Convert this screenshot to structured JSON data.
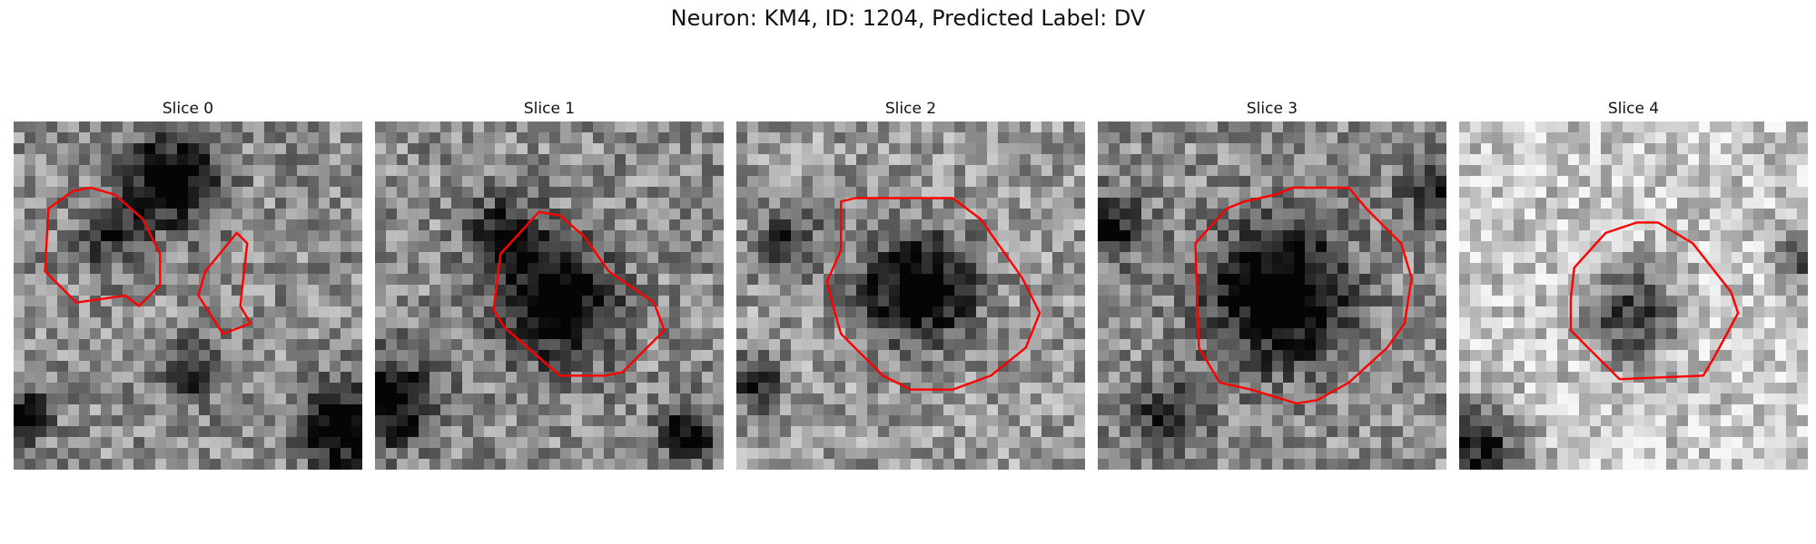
{
  "figure": {
    "title": "Neuron: KM4, ID: 1204, Predicted Label: DV"
  },
  "panels": [
    {
      "title": "Slice 0",
      "seed": 11,
      "dark_blobs": [
        [
          0.45,
          0.17,
          0.16,
          0.95
        ],
        [
          0.28,
          0.32,
          0.12,
          0.55
        ],
        [
          0.95,
          0.88,
          0.15,
          0.95
        ],
        [
          0.02,
          0.85,
          0.09,
          0.85
        ],
        [
          0.5,
          0.72,
          0.1,
          0.6
        ]
      ],
      "base": 0.55,
      "contours": [
        [
          [
            0.1,
            0.25
          ],
          [
            0.17,
            0.2
          ],
          [
            0.22,
            0.19
          ],
          [
            0.29,
            0.21
          ],
          [
            0.37,
            0.28
          ],
          [
            0.42,
            0.38
          ],
          [
            0.42,
            0.47
          ],
          [
            0.36,
            0.53
          ],
          [
            0.32,
            0.5
          ],
          [
            0.18,
            0.52
          ],
          [
            0.09,
            0.43
          ]
        ],
        [
          [
            0.64,
            0.32
          ],
          [
            0.67,
            0.35
          ],
          [
            0.65,
            0.53
          ],
          [
            0.68,
            0.58
          ],
          [
            0.6,
            0.61
          ],
          [
            0.53,
            0.5
          ],
          [
            0.55,
            0.43
          ]
        ]
      ]
    },
    {
      "title": "Slice 1",
      "seed": 23,
      "dark_blobs": [
        [
          0.52,
          0.52,
          0.2,
          1.0
        ],
        [
          0.37,
          0.32,
          0.13,
          0.6
        ],
        [
          0.04,
          0.8,
          0.16,
          0.9
        ],
        [
          0.9,
          0.9,
          0.1,
          0.8
        ]
      ],
      "base": 0.55,
      "contours": [
        [
          [
            0.36,
            0.38
          ],
          [
            0.47,
            0.26
          ],
          [
            0.53,
            0.27
          ],
          [
            0.6,
            0.33
          ],
          [
            0.67,
            0.43
          ],
          [
            0.8,
            0.52
          ],
          [
            0.83,
            0.6
          ],
          [
            0.71,
            0.72
          ],
          [
            0.66,
            0.73
          ],
          [
            0.53,
            0.73
          ],
          [
            0.37,
            0.59
          ],
          [
            0.34,
            0.54
          ]
        ]
      ]
    },
    {
      "title": "Slice 2",
      "seed": 37,
      "dark_blobs": [
        [
          0.52,
          0.48,
          0.2,
          0.98
        ],
        [
          0.15,
          0.35,
          0.12,
          0.55
        ],
        [
          0.05,
          0.75,
          0.1,
          0.7
        ]
      ],
      "base": 0.6,
      "contours": [
        [
          [
            0.3,
            0.23
          ],
          [
            0.34,
            0.22
          ],
          [
            0.62,
            0.22
          ],
          [
            0.7,
            0.28
          ],
          [
            0.82,
            0.45
          ],
          [
            0.87,
            0.55
          ],
          [
            0.83,
            0.65
          ],
          [
            0.73,
            0.73
          ],
          [
            0.62,
            0.77
          ],
          [
            0.5,
            0.77
          ],
          [
            0.42,
            0.73
          ],
          [
            0.3,
            0.61
          ],
          [
            0.28,
            0.54
          ],
          [
            0.26,
            0.46
          ],
          [
            0.3,
            0.37
          ]
        ]
      ]
    },
    {
      "title": "Slice 3",
      "seed": 53,
      "dark_blobs": [
        [
          0.52,
          0.5,
          0.24,
          1.0
        ],
        [
          0.03,
          0.3,
          0.12,
          0.7
        ],
        [
          0.98,
          0.2,
          0.12,
          0.7
        ],
        [
          0.2,
          0.85,
          0.12,
          0.6
        ]
      ],
      "base": 0.55,
      "contours": [
        [
          [
            0.28,
            0.35
          ],
          [
            0.37,
            0.25
          ],
          [
            0.42,
            0.23
          ],
          [
            0.51,
            0.21
          ],
          [
            0.56,
            0.19
          ],
          [
            0.72,
            0.19
          ],
          [
            0.77,
            0.25
          ],
          [
            0.87,
            0.35
          ],
          [
            0.9,
            0.45
          ],
          [
            0.88,
            0.58
          ],
          [
            0.83,
            0.65
          ],
          [
            0.72,
            0.75
          ],
          [
            0.63,
            0.8
          ],
          [
            0.57,
            0.81
          ],
          [
            0.44,
            0.77
          ],
          [
            0.35,
            0.75
          ],
          [
            0.29,
            0.65
          ]
        ]
      ]
    },
    {
      "title": "Slice 4",
      "seed": 71,
      "dark_blobs": [
        [
          0.5,
          0.55,
          0.17,
          0.75
        ],
        [
          0.05,
          0.95,
          0.17,
          0.9
        ],
        [
          1.0,
          0.38,
          0.1,
          0.7
        ]
      ],
      "base": 0.78,
      "contours": [
        [
          [
            0.33,
            0.42
          ],
          [
            0.42,
            0.32
          ],
          [
            0.51,
            0.29
          ],
          [
            0.57,
            0.29
          ],
          [
            0.67,
            0.35
          ],
          [
            0.78,
            0.49
          ],
          [
            0.8,
            0.55
          ],
          [
            0.73,
            0.68
          ],
          [
            0.7,
            0.73
          ],
          [
            0.46,
            0.74
          ],
          [
            0.32,
            0.6
          ],
          [
            0.32,
            0.51
          ]
        ]
      ]
    }
  ]
}
